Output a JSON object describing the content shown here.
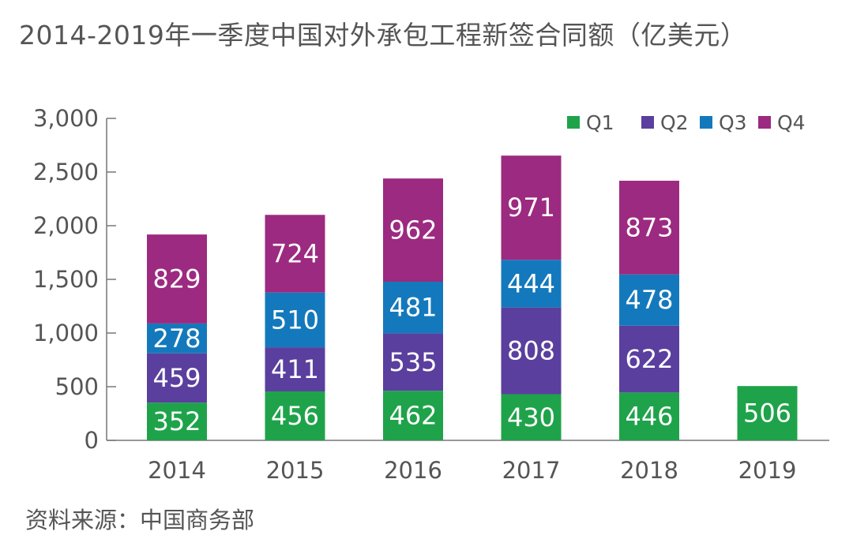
{
  "title": "2014-2019年一季度中国对外承包工程新签合同额（亿美元）",
  "source": "资料来源：中国商务部",
  "chart_data": {
    "type": "bar",
    "stacked": true,
    "title": "2014-2019年一季度中国对外承包工程新签合同额（亿美元）",
    "xlabel": "",
    "ylabel": "",
    "ylim": [
      0,
      3000
    ],
    "yticks": [
      0,
      500,
      1000,
      1500,
      2000,
      2500,
      3000
    ],
    "ytick_labels": [
      "0",
      "500",
      "1,000",
      "1,500",
      "2,000",
      "2,500",
      "3,000"
    ],
    "categories": [
      "2014",
      "2015",
      "2016",
      "2017",
      "2018",
      "2019"
    ],
    "legend_position": "top-right",
    "grid": false,
    "series": [
      {
        "name": "Q1",
        "color": "#1fa34a",
        "values": [
          352,
          456,
          462,
          430,
          446,
          506
        ]
      },
      {
        "name": "Q2",
        "color": "#5a3f9e",
        "values": [
          459,
          411,
          535,
          808,
          622,
          null
        ]
      },
      {
        "name": "Q3",
        "color": "#1479bc",
        "values": [
          278,
          510,
          481,
          444,
          478,
          null
        ]
      },
      {
        "name": "Q4",
        "color": "#9c2a80",
        "values": [
          829,
          724,
          962,
          971,
          873,
          null
        ]
      }
    ]
  }
}
